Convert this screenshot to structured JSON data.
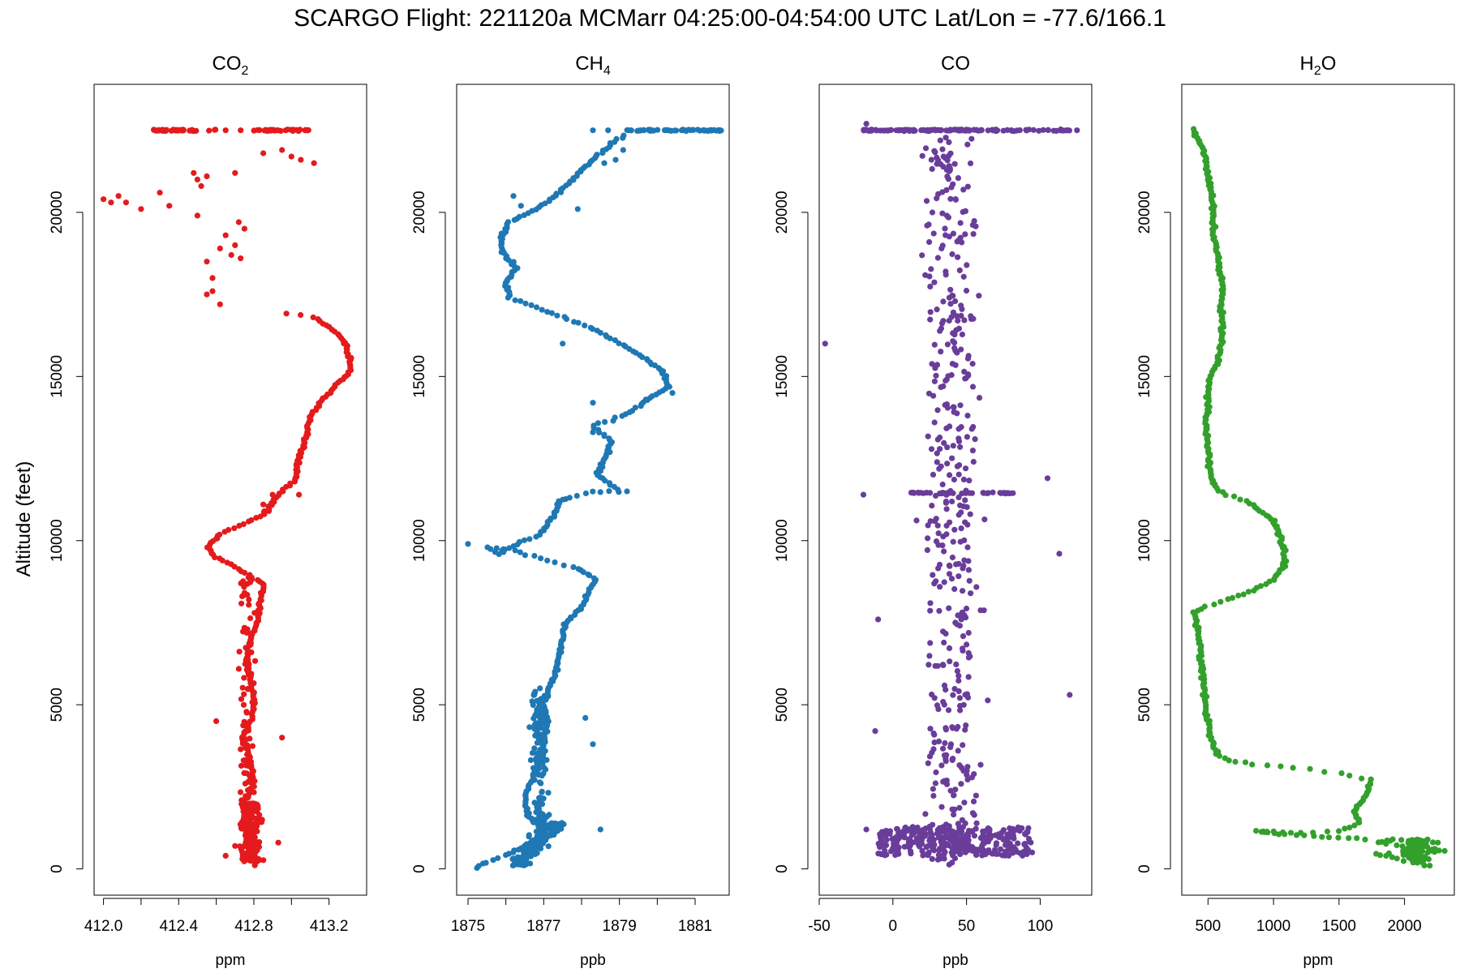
{
  "title": "SCARGO Flight: 221120a  MCMarr  04:25:00-04:54:00 UTC  Lat/Lon = -77.6/166.1",
  "ylabel": "Altitude (feet)",
  "chart_data": [
    {
      "type": "scatter",
      "title": "CO",
      "title_subscript": "2",
      "xlabel": "ppm",
      "color": "#e41a1c",
      "xlim": [
        411.95,
        413.4
      ],
      "ylim": [
        -800,
        23900
      ],
      "xticks": [
        412.0,
        412.2,
        412.4,
        412.6,
        412.8,
        413.0,
        413.2
      ],
      "xtick_labels": [
        "412.0",
        "",
        "412.4",
        "",
        "412.8",
        "",
        "413.2"
      ],
      "yticks": [
        0,
        5000,
        10000,
        15000,
        20000
      ],
      "ytick_labels": [
        "0",
        "5000",
        "10000",
        "15000",
        "20000"
      ],
      "profile": [
        [
          412.8,
          100
        ],
        [
          412.8,
          300
        ],
        [
          412.78,
          600
        ],
        [
          412.77,
          900
        ],
        [
          412.76,
          1200
        ],
        [
          412.75,
          1600
        ],
        [
          412.75,
          2000
        ],
        [
          412.79,
          2500
        ],
        [
          412.8,
          3000
        ],
        [
          412.77,
          3500
        ],
        [
          412.74,
          4000
        ],
        [
          412.78,
          4500
        ],
        [
          412.8,
          5000
        ],
        [
          412.78,
          6000
        ],
        [
          412.76,
          6500
        ],
        [
          412.78,
          7000
        ],
        [
          412.82,
          7500
        ],
        [
          412.83,
          8000
        ],
        [
          412.85,
          8700
        ],
        [
          412.7,
          9200
        ],
        [
          412.6,
          9500
        ],
        [
          412.56,
          9800
        ],
        [
          412.62,
          10200
        ],
        [
          412.75,
          10500
        ],
        [
          412.85,
          10800
        ],
        [
          412.9,
          11200
        ],
        [
          412.95,
          11500
        ],
        [
          413.02,
          11800
        ],
        [
          413.04,
          12500
        ],
        [
          413.08,
          13200
        ],
        [
          413.1,
          13800
        ],
        [
          413.18,
          14400
        ],
        [
          413.25,
          14800
        ],
        [
          413.32,
          15200
        ],
        [
          413.3,
          15800
        ],
        [
          413.25,
          16300
        ],
        [
          413.12,
          16800
        ],
        [
          412.9,
          17000
        ]
      ],
      "extra_points": [
        [
          412.04,
          20300
        ],
        [
          412.0,
          20400
        ],
        [
          412.08,
          20500
        ],
        [
          412.12,
          20300
        ],
        [
          412.2,
          20100
        ],
        [
          412.3,
          20600
        ],
        [
          412.35,
          20200
        ],
        [
          412.5,
          19900
        ],
        [
          412.55,
          17500
        ],
        [
          412.58,
          18000
        ],
        [
          412.55,
          18500
        ],
        [
          412.62,
          17200
        ],
        [
          412.58,
          17600
        ],
        [
          412.62,
          18900
        ],
        [
          412.65,
          19300
        ],
        [
          412.7,
          19000
        ],
        [
          412.72,
          19700
        ],
        [
          412.75,
          19500
        ],
        [
          412.68,
          18700
        ],
        [
          412.73,
          18600
        ],
        [
          412.48,
          21200
        ],
        [
          412.5,
          21000
        ],
        [
          412.52,
          20800
        ],
        [
          412.55,
          21100
        ],
        [
          412.7,
          21200
        ],
        [
          412.95,
          21900
        ],
        [
          413.05,
          21600
        ],
        [
          413.12,
          21500
        ],
        [
          412.9,
          11400
        ],
        [
          412.88,
          10900
        ],
        [
          412.85,
          11100
        ],
        [
          413.04,
          11400
        ],
        [
          412.6,
          4500
        ],
        [
          412.95,
          4000
        ],
        [
          412.93,
          800
        ],
        [
          412.65,
          400
        ],
        [
          412.7,
          700
        ],
        [
          412.85,
          21800
        ],
        [
          413.0,
          21700
        ]
      ],
      "top_band": {
        "y": 22500,
        "segments": [
          [
            412.25,
            412.6
          ],
          [
            412.8,
            413.1
          ]
        ],
        "extra_x": [
          412.65,
          412.73
        ]
      }
    },
    {
      "type": "scatter",
      "title": "CH",
      "title_subscript": "4",
      "xlabel": "ppb",
      "color": "#1f78b4",
      "xlim": [
        1874.7,
        1881.9
      ],
      "ylim": [
        -800,
        23900
      ],
      "xticks": [
        1875,
        1876,
        1877,
        1878,
        1879,
        1880,
        1881
      ],
      "xtick_labels": [
        "1875",
        "",
        "1877",
        "",
        "1879",
        "",
        "1881"
      ],
      "yticks": [
        0,
        5000,
        10000,
        15000,
        20000
      ],
      "ytick_labels": [
        "0",
        "5000",
        "10000",
        "15000",
        "20000"
      ],
      "profile": [
        [
          1875.2,
          50
        ],
        [
          1875.5,
          200
        ],
        [
          1876.0,
          400
        ],
        [
          1876.5,
          700
        ],
        [
          1876.9,
          1000
        ],
        [
          1877.0,
          1200
        ],
        [
          1876.6,
          1600
        ],
        [
          1876.5,
          2000
        ],
        [
          1876.6,
          2500
        ],
        [
          1876.8,
          3000
        ],
        [
          1876.9,
          3500
        ],
        [
          1877.0,
          4000
        ],
        [
          1877.1,
          4500
        ],
        [
          1877.0,
          5000
        ],
        [
          1877.3,
          6000
        ],
        [
          1877.4,
          6500
        ],
        [
          1877.5,
          7000
        ],
        [
          1877.6,
          7500
        ],
        [
          1878.0,
          8000
        ],
        [
          1878.2,
          8500
        ],
        [
          1878.4,
          8800
        ],
        [
          1877.8,
          9200
        ],
        [
          1877.1,
          9400
        ],
        [
          1876.2,
          9700
        ],
        [
          1875.5,
          9800
        ],
        [
          1875.8,
          9600
        ],
        [
          1876.5,
          10000
        ],
        [
          1876.9,
          10200
        ],
        [
          1877.1,
          10500
        ],
        [
          1877.3,
          10800
        ],
        [
          1877.4,
          11200
        ],
        [
          1877.7,
          11300
        ],
        [
          1878.3,
          11500
        ],
        [
          1879.0,
          11500
        ],
        [
          1878.4,
          12000
        ],
        [
          1878.6,
          12500
        ],
        [
          1878.8,
          13000
        ],
        [
          1878.3,
          13500
        ],
        [
          1879.1,
          13800
        ],
        [
          1879.5,
          14100
        ],
        [
          1880.3,
          14700
        ],
        [
          1880.1,
          15200
        ],
        [
          1879.6,
          15600
        ],
        [
          1878.9,
          16100
        ],
        [
          1878.2,
          16500
        ],
        [
          1877.5,
          16800
        ],
        [
          1876.8,
          17100
        ],
        [
          1876.1,
          17400
        ],
        [
          1876.0,
          17900
        ],
        [
          1876.3,
          18300
        ],
        [
          1875.9,
          18800
        ],
        [
          1875.9,
          19300
        ],
        [
          1876.1,
          19700
        ],
        [
          1876.8,
          20100
        ],
        [
          1877.2,
          20400
        ],
        [
          1877.6,
          20800
        ],
        [
          1878.0,
          21300
        ],
        [
          1878.4,
          21700
        ],
        [
          1878.8,
          22100
        ],
        [
          1879.2,
          22400
        ]
      ],
      "extra_points": [
        [
          1876.4,
          20200
        ],
        [
          1876.2,
          20500
        ],
        [
          1877.9,
          20100
        ],
        [
          1878.6,
          21500
        ],
        [
          1878.9,
          21600
        ],
        [
          1879.1,
          21900
        ],
        [
          1875.9,
          9700
        ],
        [
          1875.0,
          9900
        ],
        [
          1878.3,
          3800
        ],
        [
          1878.1,
          4600
        ],
        [
          1876.9,
          5500
        ],
        [
          1878.5,
          1200
        ],
        [
          1878.3,
          13300
        ],
        [
          1878.7,
          12700
        ],
        [
          1879.2,
          11500
        ],
        [
          1879.7,
          14300
        ],
        [
          1880.4,
          14500
        ],
        [
          1877.5,
          16000
        ],
        [
          1878.3,
          14200
        ]
      ],
      "top_band": {
        "y": 22500,
        "segments": [
          [
            1879.2,
            1881.7
          ]
        ],
        "extra_x": [
          1878.3,
          1878.7
        ]
      }
    },
    {
      "type": "scatter",
      "title": "CO",
      "title_subscript": "",
      "xlabel": "ppb",
      "color": "#6a3d9a",
      "xlim": [
        -50,
        135
      ],
      "ylim": [
        -800,
        23900
      ],
      "xticks": [
        -50,
        0,
        50,
        100
      ],
      "xtick_labels": [
        "-50",
        "0",
        "50",
        "100"
      ],
      "yticks": [
        0,
        5000,
        10000,
        15000,
        20000
      ],
      "ytick_labels": [
        "0",
        "5000",
        "10000",
        "15000",
        "20000"
      ],
      "cloud": {
        "x_center": 40,
        "x_spread": 22,
        "y_range": [
          100,
          22300
        ]
      },
      "dense_band_low": {
        "y_range": [
          400,
          1300
        ],
        "x_range": [
          -10,
          95
        ]
      },
      "band_mid": {
        "y": 11450,
        "x_range": [
          10,
          90
        ]
      },
      "outliers": [
        [
          -46,
          16000
        ],
        [
          -20,
          11400
        ],
        [
          -18,
          1200
        ],
        [
          -10,
          7600
        ],
        [
          -12,
          4200
        ],
        [
          113,
          9600
        ],
        [
          120,
          5300
        ],
        [
          105,
          11900
        ],
        [
          125,
          22500
        ],
        [
          -18,
          22700
        ]
      ],
      "top_band": {
        "y": 22500,
        "segments": [
          [
            -20,
            120
          ]
        ],
        "extra_x": []
      }
    },
    {
      "type": "scatter",
      "title": "H",
      "title_subscript": "2",
      "title_suffix": "O",
      "xlabel": "ppm",
      "color": "#33a02c",
      "xlim": [
        300,
        2380
      ],
      "ylim": [
        -800,
        23900
      ],
      "xticks": [
        500,
        1000,
        1500,
        2000
      ],
      "xtick_labels": [
        "500",
        "1000",
        "1500",
        "2000"
      ],
      "yticks": [
        0,
        5000,
        10000,
        15000,
        20000
      ],
      "ytick_labels": [
        "0",
        "5000",
        "10000",
        "15000",
        "20000"
      ],
      "profile": [
        [
          2200,
          100
        ],
        [
          2050,
          200
        ],
        [
          1900,
          350
        ],
        [
          1780,
          450
        ],
        [
          2100,
          500
        ],
        [
          2300,
          550
        ],
        [
          2200,
          600
        ],
        [
          2000,
          700
        ],
        [
          1800,
          800
        ],
        [
          1900,
          900
        ],
        [
          2100,
          850
        ],
        [
          2250,
          800
        ],
        [
          1700,
          900
        ],
        [
          1500,
          950
        ],
        [
          1300,
          1000
        ],
        [
          1100,
          1050
        ],
        [
          950,
          1100
        ],
        [
          880,
          1150
        ],
        [
          1000,
          1120
        ],
        [
          1200,
          1100
        ],
        [
          1500,
          1150
        ],
        [
          1650,
          1400
        ],
        [
          1620,
          1800
        ],
        [
          1700,
          2200
        ],
        [
          1750,
          2700
        ],
        [
          1500,
          2900
        ],
        [
          1150,
          3100
        ],
        [
          850,
          3200
        ],
        [
          650,
          3300
        ],
        [
          570,
          3500
        ],
        [
          520,
          4000
        ],
        [
          500,
          4500
        ],
        [
          480,
          5000
        ],
        [
          470,
          5600
        ],
        [
          450,
          6200
        ],
        [
          440,
          6800
        ],
        [
          420,
          7300
        ],
        [
          400,
          7800
        ],
        [
          480,
          8000
        ],
        [
          650,
          8200
        ],
        [
          850,
          8500
        ],
        [
          1000,
          8800
        ],
        [
          1080,
          9200
        ],
        [
          1080,
          9700
        ],
        [
          1040,
          10200
        ],
        [
          1000,
          10600
        ],
        [
          900,
          10900
        ],
        [
          800,
          11200
        ],
        [
          650,
          11400
        ],
        [
          560,
          11600
        ],
        [
          520,
          12000
        ],
        [
          510,
          12500
        ],
        [
          500,
          13000
        ],
        [
          480,
          13500
        ],
        [
          500,
          14000
        ],
        [
          500,
          14500
        ],
        [
          520,
          15000
        ],
        [
          580,
          15500
        ],
        [
          600,
          16000
        ],
        [
          610,
          16500
        ],
        [
          600,
          17000
        ],
        [
          610,
          17500
        ],
        [
          600,
          18000
        ],
        [
          580,
          18500
        ],
        [
          560,
          19000
        ],
        [
          540,
          19500
        ],
        [
          540,
          20000
        ],
        [
          530,
          20500
        ],
        [
          510,
          21000
        ],
        [
          490,
          21500
        ],
        [
          450,
          22000
        ],
        [
          400,
          22400
        ],
        [
          370,
          22600
        ]
      ],
      "extra_points": [],
      "top_band": null
    }
  ]
}
